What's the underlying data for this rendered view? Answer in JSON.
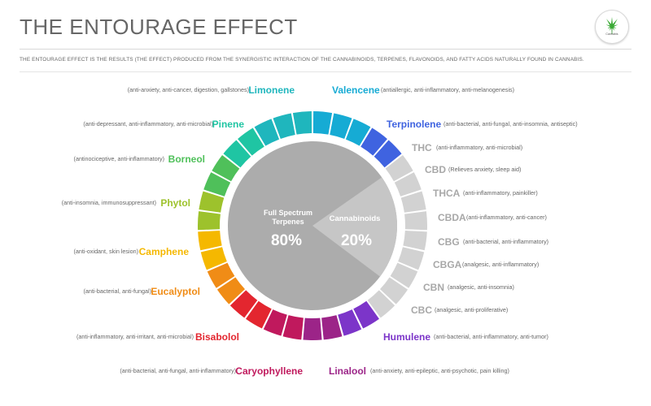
{
  "header": {
    "title": "THE ENTOURAGE EFFECT",
    "subtitle": "THE ENTOURAGE EFFECT IS THE RESULTS (THE EFFECT) PRODUCED FROM THE SYNERGISTIC INTERACTION OF THE CANNABINOIDS, TERPENES, FLAVONOIDS, AND FATTY ACIDS NATURALLY FOUND IN CANNABIS.",
    "logo_text": "Cannabis"
  },
  "center": {
    "terpenes_label_line1": "Full Spectrum",
    "terpenes_label_line2": "Terpenes",
    "terpenes_percent": "80%",
    "cannabinoids_label": "Cannabinoids",
    "cannabinoids_percent": "20%"
  },
  "colors": {
    "terpene_disk": "#acacac",
    "cannabinoid_wedge": "#c6c6c6",
    "cannabinoid_segment": "#d2d2d2",
    "cannabinoid_text": "#a8a8a8"
  },
  "items": [
    {
      "name": "Limonene",
      "desc": "(anti-anxiety, anti-cancer, digestion, gallstones)",
      "color": "#1fb6bd"
    },
    {
      "name": "Valencene",
      "desc": "(antiallergic, anti-inflammatory, anti-melanogenesis)",
      "color": "#16abd4"
    },
    {
      "name": "Pinene",
      "desc": "(anti-depressant, anti-inflammatory, anti-microbial)",
      "color": "#1fc5a3"
    },
    {
      "name": "Terpinolene",
      "desc": "(anti-bacterial, anti-fungal, anti-insomnia, antiseptic)",
      "color": "#3f63e0"
    },
    {
      "name": "Borneol",
      "desc": "(antinociceptive, anti-inflammatory)",
      "color": "#4fc05a"
    },
    {
      "name": "THC",
      "desc": "(anti-inflammatory, anti-microbial)",
      "color": "#a8a8a8"
    },
    {
      "name": "CBD",
      "desc": "(Relieves anxiety, sleep aid)",
      "color": "#a8a8a8"
    },
    {
      "name": "Phytol",
      "desc": "(anti-insomnia, immunosuppressant)",
      "color": "#9dc22c"
    },
    {
      "name": "THCA",
      "desc": "(anti-inflammatory, painkiller)",
      "color": "#a8a8a8"
    },
    {
      "name": "CBDA",
      "desc": "(anti-inflammatory, anti-cancer)",
      "color": "#a8a8a8"
    },
    {
      "name": "Camphene",
      "desc": "(anti-oxidant, skin lesion)",
      "color": "#f5b800"
    },
    {
      "name": "CBG",
      "desc": "(anti-bacterial, anti-inflammatory)",
      "color": "#a8a8a8"
    },
    {
      "name": "CBGA",
      "desc": "(analgesic, anti-inflammatory)",
      "color": "#a8a8a8"
    },
    {
      "name": "Eucalyptol",
      "desc": "(anti-bacterial, anti-fungal)",
      "color": "#f08c16"
    },
    {
      "name": "CBN",
      "desc": "(analgesic, anti-insomnia)",
      "color": "#a8a8a8"
    },
    {
      "name": "CBC",
      "desc": "(analgesic, anti-proliferative)",
      "color": "#a8a8a8"
    },
    {
      "name": "Bisabolol",
      "desc": "(anti-inflammatory, anti-irritant, anti-microbial)",
      "color": "#e3262f"
    },
    {
      "name": "Humulene",
      "desc": "(anti-bacterial, anti-inflammatory, anti-tumor)",
      "color": "#7c35c9"
    },
    {
      "name": "Caryophyllene",
      "desc": "(anti-bacterial, anti-fungal, anti-inflammatory)",
      "color": "#c0195d"
    },
    {
      "name": "Linalool",
      "desc": "(anti-anxiety, anti-epileptic, anti-psychotic, pain killing)",
      "color": "#9c2488"
    }
  ]
}
